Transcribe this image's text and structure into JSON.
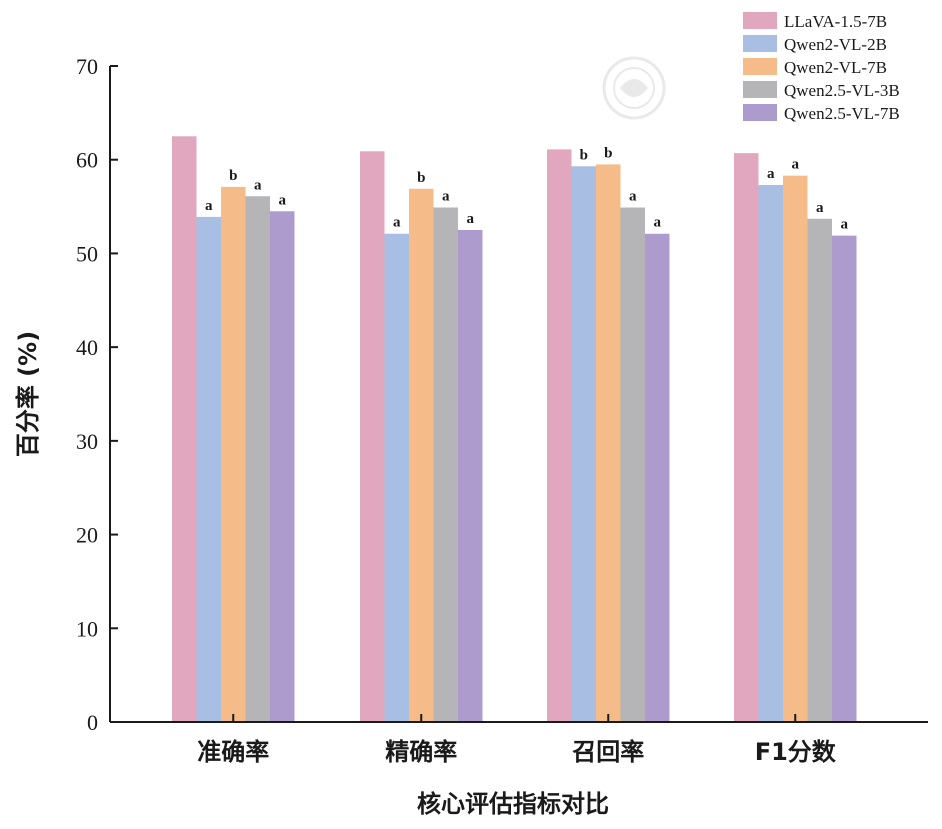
{
  "chart_data": {
    "type": "bar",
    "title": "",
    "xlabel": "核心评估指标对比",
    "ylabel": "百分率 (%)",
    "ylim": [
      0,
      70
    ],
    "yticks": [
      0,
      10,
      20,
      30,
      40,
      50,
      60,
      70
    ],
    "grid": false,
    "legend_position": "top-right",
    "categories": [
      "准确率",
      "精确率",
      "召回率",
      "F1分数"
    ],
    "series": [
      {
        "name": "LLaVA-1.5-7B",
        "color": "#E0A7BF",
        "values": [
          62.5,
          60.9,
          61.1,
          60.7
        ],
        "labels": [
          "",
          "",
          "",
          ""
        ]
      },
      {
        "name": "Qwen2-VL-2B",
        "color": "#A8BFE3",
        "values": [
          53.9,
          52.1,
          59.3,
          57.3
        ],
        "labels": [
          "a",
          "a",
          "b",
          "a"
        ]
      },
      {
        "name": "Qwen2-VL-7B",
        "color": "#F5BC8A",
        "values": [
          57.1,
          56.9,
          59.5,
          58.3
        ],
        "labels": [
          "b",
          "b",
          "b",
          "a"
        ]
      },
      {
        "name": "Qwen2.5-VL-3B",
        "color": "#B5B5B7",
        "values": [
          56.1,
          54.9,
          54.9,
          53.7
        ],
        "labels": [
          "a",
          "a",
          "a",
          "a"
        ]
      },
      {
        "name": "Qwen2.5-VL-7B",
        "color": "#AE9BCE",
        "values": [
          54.5,
          52.5,
          52.1,
          51.9
        ],
        "labels": [
          "a",
          "a",
          "a",
          "a"
        ]
      }
    ]
  }
}
